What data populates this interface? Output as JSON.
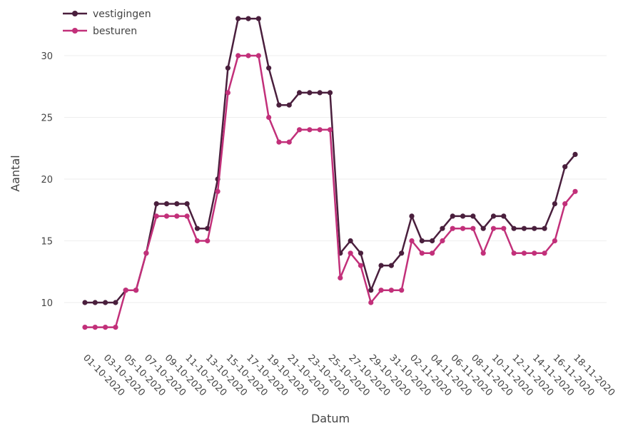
{
  "chart_data": {
    "type": "line",
    "title": "",
    "xlabel": "Datum",
    "ylabel": "Aantal",
    "ylim": [
      7,
      34
    ],
    "yticks": [
      10,
      15,
      20,
      25,
      30
    ],
    "grid": true,
    "legend_position": "top-left",
    "x": [
      "01-10-2020",
      "02-10-2020",
      "03-10-2020",
      "04-10-2020",
      "05-10-2020",
      "06-10-2020",
      "07-10-2020",
      "08-10-2020",
      "09-10-2020",
      "10-10-2020",
      "11-10-2020",
      "12-10-2020",
      "13-10-2020",
      "14-10-2020",
      "15-10-2020",
      "16-10-2020",
      "17-10-2020",
      "18-10-2020",
      "19-10-2020",
      "20-10-2020",
      "21-10-2020",
      "22-10-2020",
      "23-10-2020",
      "24-10-2020",
      "25-10-2020",
      "26-10-2020",
      "27-10-2020",
      "28-10-2020",
      "29-10-2020",
      "30-10-2020",
      "31-10-2020",
      "01-11-2020",
      "02-11-2020",
      "03-11-2020",
      "04-11-2020",
      "05-11-2020",
      "06-11-2020",
      "07-11-2020",
      "08-11-2020",
      "09-11-2020",
      "10-11-2020",
      "11-11-2020",
      "12-11-2020",
      "13-11-2020",
      "14-11-2020",
      "15-11-2020",
      "16-11-2020",
      "17-11-2020",
      "18-11-2020"
    ],
    "xtick_labels": [
      "01-10-2020",
      "03-10-2020",
      "05-10-2020",
      "07-10-2020",
      "09-10-2020",
      "11-10-2020",
      "13-10-2020",
      "15-10-2020",
      "17-10-2020",
      "19-10-2020",
      "21-10-2020",
      "23-10-2020",
      "25-10-2020",
      "27-10-2020",
      "29-10-2020",
      "31-10-2020",
      "02-11-2020",
      "04-11-2020",
      "06-11-2020",
      "08-11-2020",
      "10-11-2020",
      "12-11-2020",
      "14-11-2020",
      "16-11-2020",
      "18-11-2020"
    ],
    "series": [
      {
        "name": "vestigingen",
        "color": "#4a1f3d",
        "values": [
          10,
          10,
          10,
          10,
          11,
          11,
          14,
          18,
          18,
          18,
          18,
          16,
          16,
          20,
          29,
          33,
          33,
          33,
          29,
          26,
          26,
          27,
          27,
          27,
          27,
          14,
          15,
          14,
          11,
          13,
          13,
          14,
          17,
          15,
          15,
          16,
          17,
          17,
          17,
          16,
          17,
          17,
          16,
          16,
          16,
          16,
          18,
          21,
          22
        ]
      },
      {
        "name": "besturen",
        "color": "#c2307a",
        "values": [
          8,
          8,
          8,
          8,
          11,
          11,
          14,
          17,
          17,
          17,
          17,
          15,
          15,
          19,
          27,
          30,
          30,
          30,
          25,
          23,
          23,
          24,
          24,
          24,
          24,
          12,
          14,
          13,
          10,
          11,
          11,
          11,
          15,
          14,
          14,
          15,
          16,
          16,
          16,
          14,
          16,
          16,
          14,
          14,
          14,
          14,
          15,
          18,
          19
        ]
      }
    ]
  }
}
